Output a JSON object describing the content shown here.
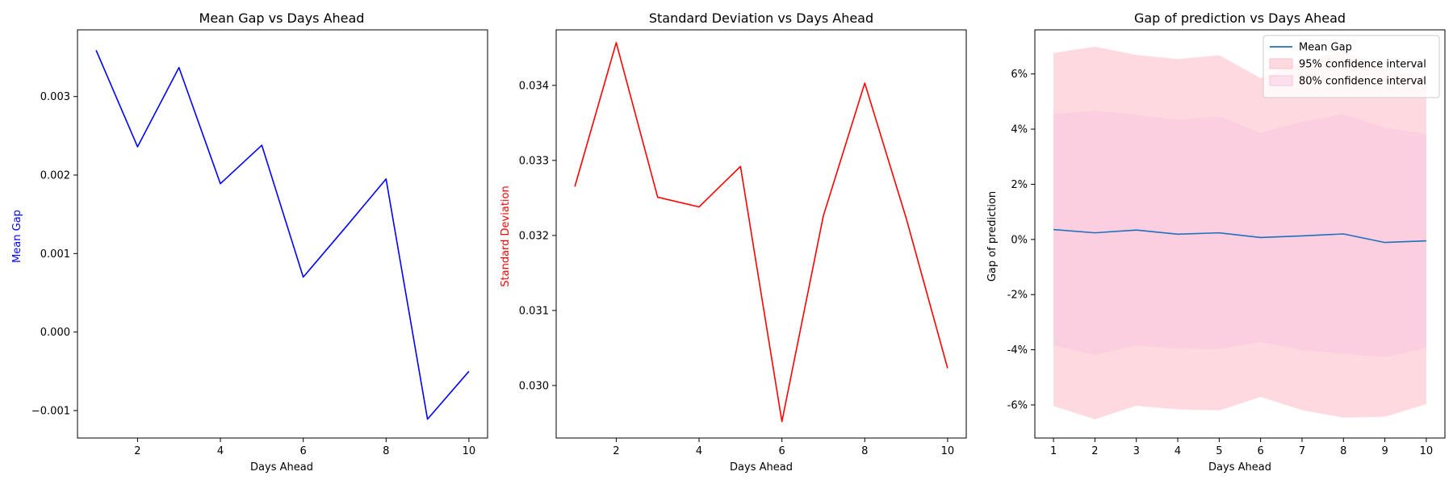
{
  "chart_data": [
    {
      "type": "line",
      "title": "Mean Gap vs Days Ahead",
      "xlabel": "Days Ahead",
      "ylabel": "Mean Gap",
      "ylabel_color": "#0000ff",
      "xlim": [
        0.55,
        10.45
      ],
      "ylim": [
        -0.00135,
        0.00385
      ],
      "xticks": [
        {
          "v": 2,
          "label": "2"
        },
        {
          "v": 4,
          "label": "4"
        },
        {
          "v": 6,
          "label": "6"
        },
        {
          "v": 8,
          "label": "8"
        },
        {
          "v": 10,
          "label": "10"
        }
      ],
      "yticks": [
        {
          "v": -0.001,
          "label": "−0.001"
        },
        {
          "v": 0.0,
          "label": "0.000"
        },
        {
          "v": 0.001,
          "label": "0.001"
        },
        {
          "v": 0.002,
          "label": "0.002"
        },
        {
          "v": 0.003,
          "label": "0.003"
        }
      ],
      "grid": false,
      "series": [
        {
          "color": "#0000ff",
          "x": [
            1,
            2,
            3,
            4,
            5,
            6,
            7,
            8,
            9,
            10
          ],
          "y": [
            0.00359,
            0.00236,
            0.00337,
            0.00189,
            0.00238,
            0.0007,
            0.00132,
            0.00195,
            -0.00111,
            -0.0005
          ]
        }
      ]
    },
    {
      "type": "line",
      "title": "Standard Deviation vs Days Ahead",
      "xlabel": "Days Ahead",
      "ylabel": "Standard Deviation",
      "ylabel_color": "#ff0000",
      "xlim": [
        0.55,
        10.45
      ],
      "ylim": [
        0.0293,
        0.03474
      ],
      "xticks": [
        {
          "v": 2,
          "label": "2"
        },
        {
          "v": 4,
          "label": "4"
        },
        {
          "v": 6,
          "label": "6"
        },
        {
          "v": 8,
          "label": "8"
        },
        {
          "v": 10,
          "label": "10"
        }
      ],
      "yticks": [
        {
          "v": 0.03,
          "label": "0.030"
        },
        {
          "v": 0.031,
          "label": "0.031"
        },
        {
          "v": 0.032,
          "label": "0.032"
        },
        {
          "v": 0.033,
          "label": "0.033"
        },
        {
          "v": 0.034,
          "label": "0.034"
        }
      ],
      "grid": false,
      "series": [
        {
          "color": "#ff0000",
          "x": [
            1,
            2,
            3,
            4,
            5,
            6,
            7,
            8,
            9,
            10
          ],
          "y": [
            0.03265,
            0.03457,
            0.03251,
            0.03238,
            0.03292,
            0.02952,
            0.03226,
            0.03403,
            0.03223,
            0.03023
          ]
        }
      ]
    },
    {
      "type": "area",
      "title": "Gap of prediction vs Days Ahead",
      "xlabel": "Days Ahead",
      "ylabel": "Gap of prediction",
      "ylabel_color": "#000000",
      "xlim": [
        0.55,
        10.45
      ],
      "ylim": [
        -7.2,
        7.6
      ],
      "xticks": [
        {
          "v": 1,
          "label": "1"
        },
        {
          "v": 2,
          "label": "2"
        },
        {
          "v": 3,
          "label": "3"
        },
        {
          "v": 4,
          "label": "4"
        },
        {
          "v": 5,
          "label": "5"
        },
        {
          "v": 6,
          "label": "6"
        },
        {
          "v": 7,
          "label": "7"
        },
        {
          "v": 8,
          "label": "8"
        },
        {
          "v": 9,
          "label": "9"
        },
        {
          "v": 10,
          "label": "10"
        }
      ],
      "yticks": [
        {
          "v": -6,
          "label": "-6%"
        },
        {
          "v": -4,
          "label": "-4%"
        },
        {
          "v": -2,
          "label": "-2%"
        },
        {
          "v": 0,
          "label": "0%"
        },
        {
          "v": 2,
          "label": "2%"
        },
        {
          "v": 4,
          "label": "4%"
        },
        {
          "v": 6,
          "label": "6%"
        }
      ],
      "grid": false,
      "legend_position": "upper right",
      "series": [
        {
          "name": "Mean Gap",
          "kind": "line",
          "color": "#1f6fbf",
          "x": [
            1,
            2,
            3,
            4,
            5,
            6,
            7,
            8,
            9,
            10
          ],
          "y": [
            0.36,
            0.24,
            0.34,
            0.19,
            0.24,
            0.07,
            0.13,
            0.2,
            -0.11,
            -0.05
          ]
        }
      ],
      "bands": [
        {
          "name": "95% confidence interval",
          "color": "#ffc0cb",
          "opacity": 0.6,
          "x": [
            1,
            2,
            3,
            4,
            5,
            6,
            7,
            8,
            9,
            10
          ],
          "upper": [
            6.76,
            6.99,
            6.69,
            6.54,
            6.68,
            5.85,
            6.45,
            6.86,
            6.21,
            5.87
          ],
          "lower": [
            -6.04,
            -6.52,
            -6.03,
            -6.16,
            -6.2,
            -5.71,
            -6.19,
            -6.46,
            -6.43,
            -5.97
          ]
        },
        {
          "name": "80% confidence interval",
          "color": "#f7c6e0",
          "opacity": 0.5,
          "x": [
            1,
            2,
            3,
            4,
            5,
            6,
            7,
            8,
            9,
            10
          ],
          "upper": [
            4.55,
            4.67,
            4.52,
            4.34,
            4.46,
            3.86,
            4.27,
            4.55,
            4.05,
            3.83
          ],
          "lower": [
            -3.83,
            -4.19,
            -3.84,
            -3.96,
            -3.98,
            -3.72,
            -4.01,
            -4.15,
            -4.27,
            -3.93
          ]
        }
      ]
    }
  ]
}
